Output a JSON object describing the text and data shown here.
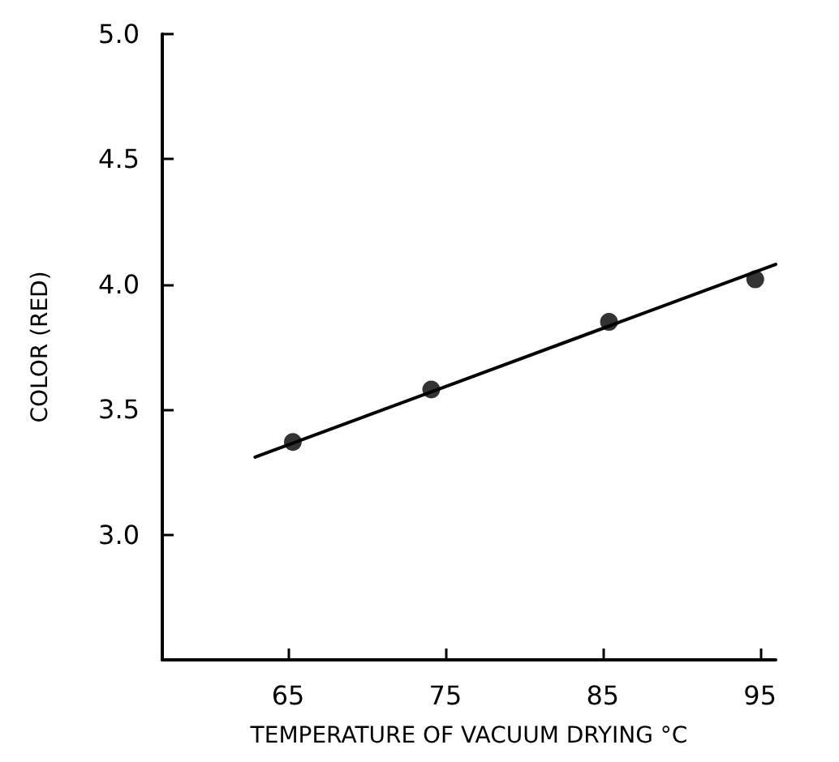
{
  "chart_data": {
    "type": "scatter",
    "xlabel": "TEMPERATURE OF VACUUM DRYING °C",
    "ylabel": "COLOR (RED)",
    "x": [
      65.3,
      74.1,
      85.4,
      94.7
    ],
    "series": [
      {
        "color": "#000000",
        "values": [
          3.37,
          3.58,
          3.85,
          4.02
        ],
        "marker": "circle"
      },
      {
        "type": "line",
        "color": "#000000",
        "x": [
          62.9,
          96
        ],
        "values": [
          3.31,
          4.08
        ],
        "marker": "none",
        "line_style": "solid"
      }
    ],
    "xlim": [
      57,
      96
    ],
    "xticks": [
      65,
      75,
      85,
      95
    ],
    "ylim": [
      2.5,
      5.0
    ],
    "yticks": [
      {
        "value": 3,
        "label": "3.0"
      },
      3.5,
      {
        "value": 4,
        "label": "4.0"
      },
      4.5,
      {
        "value": 5,
        "label": "5.0"
      }
    ],
    "grid": false
  }
}
